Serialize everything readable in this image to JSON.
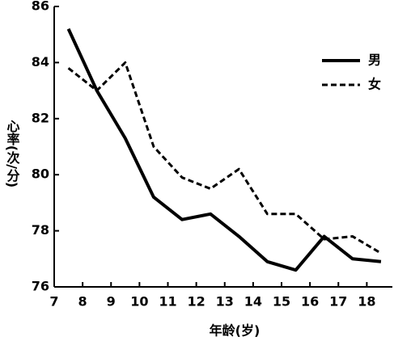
{
  "chart_data": {
    "type": "line",
    "x_label": "年龄(岁)",
    "y_label": "心率(次/分)",
    "x": [
      7.5,
      8.5,
      9.5,
      10.5,
      11.5,
      12.5,
      13.5,
      14.5,
      15.5,
      16.5,
      17.5,
      18.5
    ],
    "series": [
      {
        "name": "男",
        "color": "#000000",
        "dash": false,
        "values": [
          85.2,
          83.0,
          81.3,
          79.2,
          78.4,
          78.6,
          77.8,
          76.9,
          76.6,
          77.8,
          77.0,
          76.9
        ]
      },
      {
        "name": "女",
        "color": "#000000",
        "dash": true,
        "values": [
          83.8,
          83.0,
          84.0,
          81.0,
          79.9,
          79.5,
          80.2,
          78.6,
          78.6,
          77.7,
          77.8,
          77.2
        ]
      }
    ],
    "xlim": [
      7,
      18.9
    ],
    "ylim": [
      76,
      86
    ],
    "xticks": [
      7,
      8,
      9,
      10,
      11,
      12,
      13,
      14,
      15,
      16,
      17,
      18
    ],
    "yticks": [
      76,
      78,
      80,
      82,
      84,
      86
    ],
    "legend": "upper right",
    "grid": false
  }
}
